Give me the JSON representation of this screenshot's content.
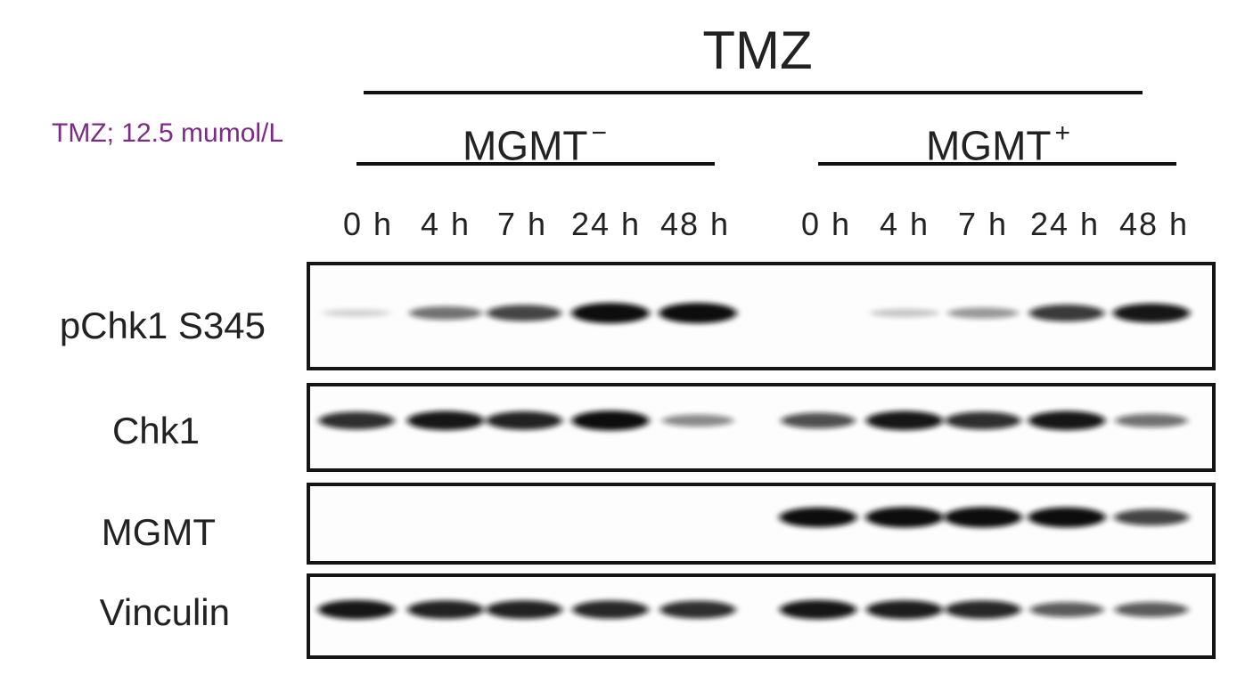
{
  "header": {
    "title": "TMZ",
    "concentration": "TMZ; 12.5 mumol/L",
    "groups": [
      {
        "name": "MGMT",
        "sign": "−"
      },
      {
        "name": "MGMT",
        "sign": "+"
      }
    ]
  },
  "lanes": [
    "0 h",
    "4 h",
    "7 h",
    "24 h",
    "48 h",
    "0 h",
    "4 h",
    "7 h",
    "24 h",
    "48 h"
  ],
  "rows": [
    {
      "label": "pChk1 S345",
      "intensities": [
        0.03,
        0.45,
        0.65,
        0.95,
        0.95,
        0.0,
        0.08,
        0.28,
        0.7,
        0.85
      ]
    },
    {
      "label": "Chk1",
      "intensities": [
        0.75,
        0.85,
        0.8,
        0.9,
        0.35,
        0.6,
        0.85,
        0.75,
        0.85,
        0.45
      ]
    },
    {
      "label": "MGMT",
      "intensities": [
        0.0,
        0.0,
        0.0,
        0.0,
        0.0,
        0.9,
        0.95,
        0.95,
        0.92,
        0.65
      ]
    },
    {
      "label": "Vinculin",
      "intensities": [
        0.85,
        0.8,
        0.8,
        0.78,
        0.75,
        0.85,
        0.82,
        0.78,
        0.55,
        0.55
      ]
    }
  ],
  "colors": {
    "concentration": "#7b2a86",
    "band": "#111111"
  }
}
